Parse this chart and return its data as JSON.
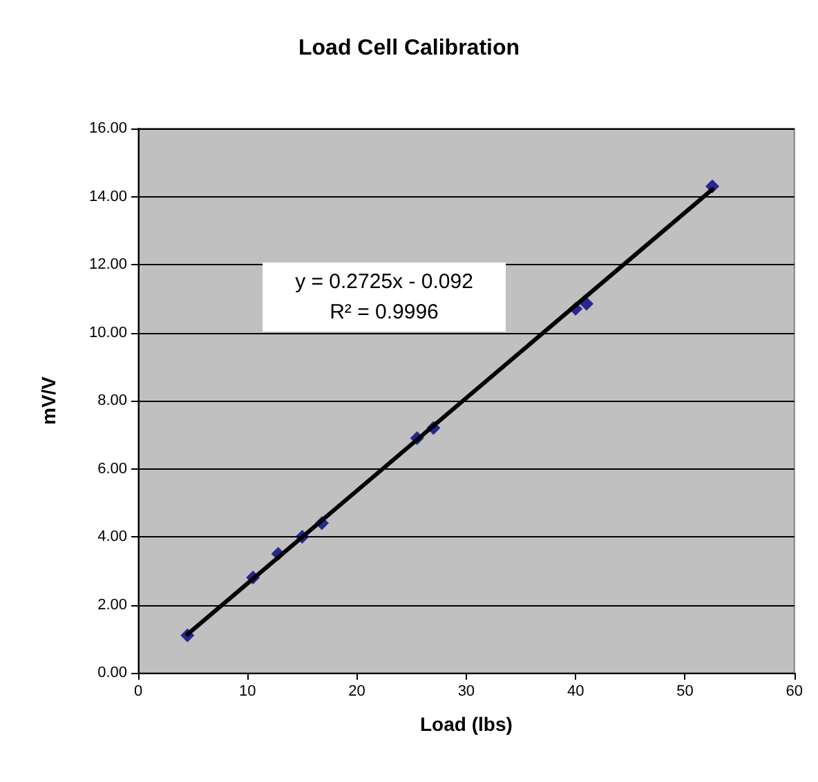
{
  "chart_data": {
    "type": "scatter",
    "title": "Load Cell Calibration",
    "xlabel": "Load (lbs)",
    "ylabel": "mV/V",
    "annotations": [
      "y = 0.2725x - 0.092",
      "R² = 0.9996"
    ],
    "series": [
      {
        "color": "#000080",
        "marker": "diamond",
        "x": [
          4.5,
          10.5,
          12.8,
          15,
          16.8,
          25.5,
          27,
          40,
          41,
          52.5
        ],
        "values": [
          1.1,
          2.8,
          3.5,
          4.0,
          4.4,
          6.9,
          7.2,
          10.7,
          10.85,
          14.3
        ]
      },
      {
        "type": "line",
        "color": "#000000",
        "marker": "none",
        "line_style": "solid",
        "x": [
          4.5,
          52.5
        ],
        "values": [
          1.13,
          14.21
        ]
      }
    ],
    "xlim": [
      0,
      60
    ],
    "xticks": [
      0,
      10,
      20,
      30,
      40,
      50,
      60
    ],
    "ylim": [
      0,
      16
    ],
    "yticks": [
      {
        "value": 0,
        "label": "0.00"
      },
      {
        "value": 2,
        "label": "2.00"
      },
      {
        "value": 4,
        "label": "4.00"
      },
      {
        "value": 6,
        "label": "6.00"
      },
      {
        "value": 8,
        "label": "8.00"
      },
      {
        "value": 10,
        "label": "10.00"
      },
      {
        "value": 12,
        "label": "12.00"
      },
      {
        "value": 14,
        "label": "14.00"
      },
      {
        "value": 16,
        "label": "16.00"
      }
    ],
    "grid": "y"
  }
}
